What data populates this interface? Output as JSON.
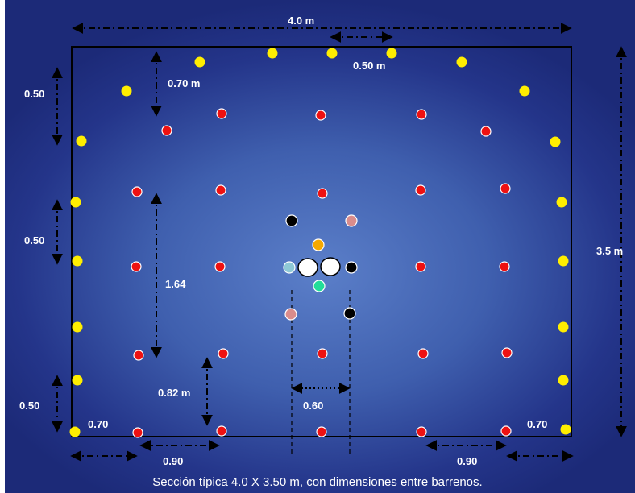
{
  "caption": "Sección típica 4.0 X 3.50 m, con dimensiones entre barrenos.",
  "dimensions": {
    "width": "4.0  m",
    "top_spacing": "0.50 m",
    "height": "3.5  m",
    "crown_offset": "0.70 m",
    "left_spacing_top": "0.50",
    "left_spacing_mid": "0.50",
    "left_spacing_bottom": "0.50",
    "mid_vertical": "1.64",
    "lower_vertical": "0.82 m",
    "cut_width": "0.60",
    "corner_left": "0.70",
    "corner_right": "0.70",
    "bottom_left": "0.90",
    "bottom_right": "0.90"
  },
  "colors": {
    "perimeter": "#ffee00",
    "production": "#ee1111",
    "cut_black": "#000000",
    "cut_pink": "#d98c8c",
    "cut_orange": "#f5a800",
    "cut_lightblue": "#8fc9d6",
    "cut_green": "#22dd99",
    "relief": "#ffffff"
  }
}
